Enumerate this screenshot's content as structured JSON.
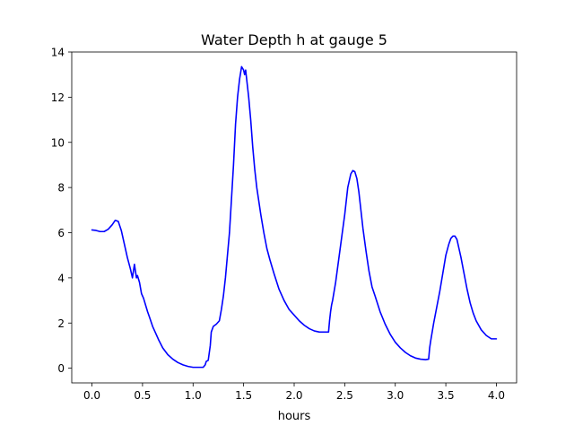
{
  "chart_data": {
    "type": "line",
    "title": "Water Depth h at gauge 5",
    "xlabel": "hours",
    "ylabel": "",
    "xlim": [
      -0.2,
      4.2
    ],
    "ylim": [
      -0.65,
      14
    ],
    "xticks": [
      0.0,
      0.5,
      1.0,
      1.5,
      2.0,
      2.5,
      3.0,
      3.5,
      4.0
    ],
    "xtick_labels": [
      "0.0",
      "0.5",
      "1.0",
      "1.5",
      "2.0",
      "2.5",
      "3.0",
      "3.5",
      "4.0"
    ],
    "yticks": [
      0,
      2,
      4,
      6,
      8,
      10,
      12,
      14
    ],
    "ytick_labels": [
      "0",
      "2",
      "4",
      "6",
      "8",
      "10",
      "12",
      "14"
    ],
    "grid": false,
    "series": [
      {
        "color": "#0000ff",
        "x": [
          0.0,
          0.04,
          0.08,
          0.12,
          0.16,
          0.2,
          0.23,
          0.26,
          0.29,
          0.32,
          0.35,
          0.38,
          0.4,
          0.42,
          0.43,
          0.44,
          0.45,
          0.47,
          0.49,
          0.51,
          0.53,
          0.55,
          0.57,
          0.6,
          0.63,
          0.66,
          0.7,
          0.75,
          0.8,
          0.85,
          0.9,
          0.95,
          1.0,
          1.05,
          1.1,
          1.12,
          1.13,
          1.15,
          1.17,
          1.18,
          1.2,
          1.23,
          1.26,
          1.28,
          1.3,
          1.32,
          1.34,
          1.36,
          1.38,
          1.4,
          1.42,
          1.44,
          1.46,
          1.48,
          1.5,
          1.51,
          1.52,
          1.53,
          1.54,
          1.55,
          1.57,
          1.59,
          1.61,
          1.63,
          1.65,
          1.67,
          1.7,
          1.73,
          1.76,
          1.8,
          1.85,
          1.9,
          1.95,
          2.0,
          2.05,
          2.1,
          2.15,
          2.2,
          2.25,
          2.3,
          2.34,
          2.35,
          2.36,
          2.37,
          2.38,
          2.41,
          2.44,
          2.47,
          2.5,
          2.53,
          2.56,
          2.58,
          2.6,
          2.62,
          2.64,
          2.66,
          2.68,
          2.71,
          2.74,
          2.77,
          2.8,
          2.85,
          2.9,
          2.95,
          3.0,
          3.05,
          3.1,
          3.15,
          3.2,
          3.25,
          3.3,
          3.33,
          3.34,
          3.35,
          3.38,
          3.41,
          3.44,
          3.47,
          3.5,
          3.53,
          3.55,
          3.57,
          3.59,
          3.61,
          3.63,
          3.65,
          3.68,
          3.71,
          3.74,
          3.77,
          3.8,
          3.85,
          3.9,
          3.95,
          4.0
        ],
        "values": [
          6.12,
          6.1,
          6.05,
          6.05,
          6.15,
          6.35,
          6.55,
          6.5,
          6.1,
          5.5,
          4.9,
          4.4,
          4.0,
          4.6,
          4.3,
          4.0,
          4.1,
          3.8,
          3.3,
          3.1,
          2.8,
          2.5,
          2.25,
          1.85,
          1.55,
          1.25,
          0.9,
          0.6,
          0.4,
          0.25,
          0.15,
          0.08,
          0.04,
          0.04,
          0.04,
          0.15,
          0.3,
          0.35,
          1.0,
          1.6,
          1.85,
          1.95,
          2.1,
          2.6,
          3.2,
          4.0,
          5.0,
          6.0,
          7.5,
          9.0,
          10.8,
          12.0,
          12.8,
          13.35,
          13.2,
          13.0,
          13.2,
          12.8,
          12.4,
          12.0,
          11.0,
          9.8,
          8.8,
          8.0,
          7.4,
          6.8,
          6.0,
          5.3,
          4.8,
          4.2,
          3.5,
          3.0,
          2.6,
          2.35,
          2.1,
          1.9,
          1.75,
          1.65,
          1.6,
          1.6,
          1.6,
          2.1,
          2.5,
          2.8,
          3.0,
          3.8,
          4.8,
          5.8,
          6.8,
          8.0,
          8.6,
          8.75,
          8.7,
          8.4,
          7.8,
          7.0,
          6.2,
          5.2,
          4.3,
          3.6,
          3.2,
          2.5,
          1.95,
          1.5,
          1.15,
          0.9,
          0.7,
          0.55,
          0.45,
          0.4,
          0.38,
          0.4,
          0.9,
          1.2,
          2.0,
          2.7,
          3.4,
          4.2,
          5.0,
          5.5,
          5.75,
          5.85,
          5.85,
          5.7,
          5.3,
          4.9,
          4.2,
          3.5,
          2.9,
          2.45,
          2.1,
          1.7,
          1.45,
          1.3,
          1.3
        ]
      }
    ]
  }
}
